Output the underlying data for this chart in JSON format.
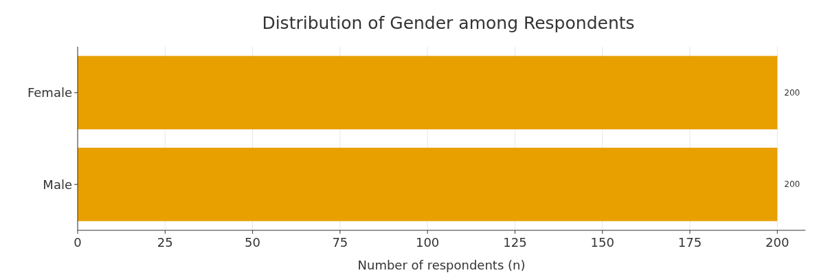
{
  "chart_data": {
    "type": "bar",
    "orientation": "horizontal",
    "title": "Distribution of Gender among Respondents",
    "xlabel": "Number of respondents (n)",
    "categories": [
      "Female",
      "Male"
    ],
    "values": [
      200,
      200
    ],
    "color": "#e8a000",
    "xlim": [
      0,
      208
    ],
    "xticks": [
      0,
      25,
      50,
      75,
      100,
      125,
      150,
      175,
      200
    ],
    "grid": "x",
    "data_labels": true
  }
}
